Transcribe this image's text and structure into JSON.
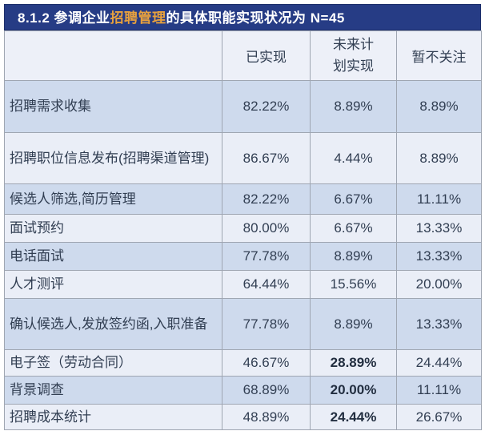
{
  "title": {
    "prefix": "8.1.2  参调企业",
    "highlight": "招聘管理",
    "suffix": "的具体职能实现状况为  N=45"
  },
  "colors": {
    "title_bar_bg": "#263C85",
    "title_text": "#FFFFFF",
    "title_highlight": "#E8A13D",
    "row_dark_bg": "#CEDAED",
    "row_light_bg": "#EAEEF7",
    "header_row_bg": "#EDF0F8",
    "border": "#9FA6B2",
    "text": "#313E52"
  },
  "table": {
    "columns": {
      "label": "",
      "implemented": "已实现",
      "planned": "未来计划实现",
      "not_focused": "暂不关注"
    },
    "rows": [
      {
        "label": "招聘需求收集",
        "values": [
          "82.22%",
          "8.89%",
          "8.89%"
        ]
      },
      {
        "label": "招聘职位信息发布(招聘渠道管理)",
        "values": [
          "86.67%",
          "4.44%",
          "8.89%"
        ]
      },
      {
        "label": "候选人筛选,简历管理",
        "values": [
          "82.22%",
          "6.67%",
          "11.11%"
        ]
      },
      {
        "label": "面试预约",
        "values": [
          "80.00%",
          "6.67%",
          "13.33%"
        ]
      },
      {
        "label": "电话面试",
        "values": [
          "77.78%",
          "8.89%",
          "13.33%"
        ]
      },
      {
        "label": "人才测评",
        "values": [
          "64.44%",
          "15.56%",
          "20.00%"
        ]
      },
      {
        "label": "确认候选人,发放签约函,入职准备",
        "values": [
          "77.78%",
          "8.89%",
          "13.33%"
        ]
      },
      {
        "label": "电子签（劳动合同）",
        "values": [
          "46.67%",
          "28.89%",
          "24.44%"
        ],
        "planned_bold": true
      },
      {
        "label": "背景调查",
        "values": [
          "68.89%",
          "20.00%",
          "11.11%"
        ],
        "planned_bold": true
      },
      {
        "label": "招聘成本统计",
        "values": [
          "48.89%",
          "24.44%",
          "26.67%"
        ],
        "planned_bold": true
      }
    ]
  }
}
